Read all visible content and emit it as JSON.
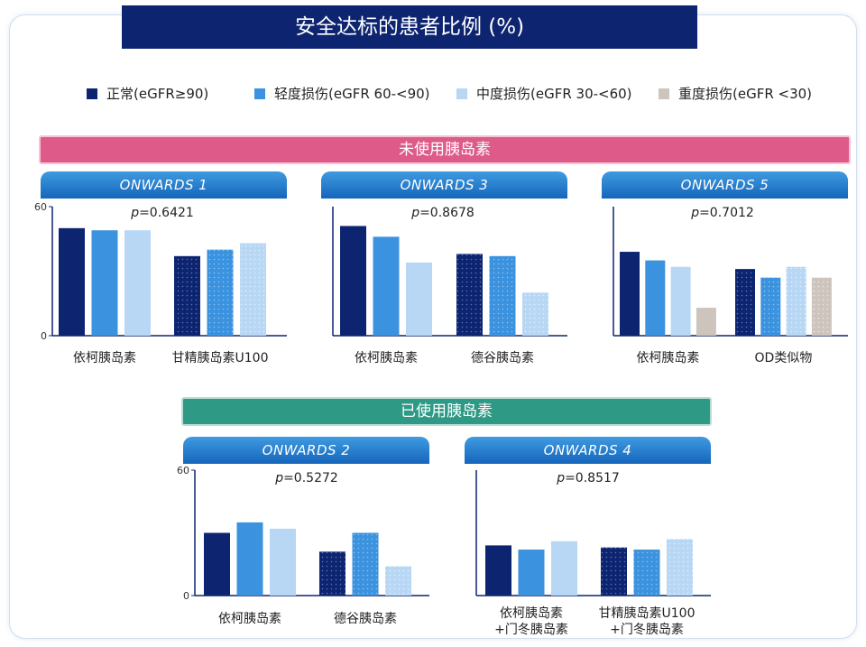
{
  "title": "安全达标的患者比例 (%)",
  "legend": [
    {
      "label": "正常(eGFR≥90)",
      "color": "#0d2470"
    },
    {
      "label": "轻度损伤(eGFR 60-<90)",
      "color": "#3b92df"
    },
    {
      "label": "中度损伤(eGFR 30-<60)",
      "color": "#b7d7f4"
    },
    {
      "label": "重度损伤(eGFR <30)",
      "color": "#cdc5bd"
    }
  ],
  "sections": {
    "insulin_naive": "未使用胰岛素",
    "insulin_experienced": "已使用胰岛素"
  },
  "chart_data": [
    {
      "type": "bar",
      "title": "ONWARDS 1",
      "p_prefix": "p",
      "p_value": "=0.6421",
      "ylim": [
        0,
        60
      ],
      "yticks": [
        "0",
        "60"
      ],
      "categories": [
        "依柯胰岛素",
        "甘精胰岛素U100"
      ],
      "series": [
        {
          "name": "正常(eGFR≥90)",
          "values": [
            50,
            37
          ]
        },
        {
          "name": "轻度损伤(eGFR 60-<90)",
          "values": [
            49,
            40
          ]
        },
        {
          "name": "中度损伤(eGFR 30-<60)",
          "values": [
            49,
            43
          ]
        }
      ]
    },
    {
      "type": "bar",
      "title": "ONWARDS 3",
      "p_prefix": "p",
      "p_value": "=0.8678",
      "ylim": [
        0,
        60
      ],
      "yticks": [],
      "categories": [
        "依柯胰岛素",
        "德谷胰岛素"
      ],
      "series": [
        {
          "name": "正常(eGFR≥90)",
          "values": [
            51,
            38
          ]
        },
        {
          "name": "轻度损伤(eGFR 60-<90)",
          "values": [
            46,
            37
          ]
        },
        {
          "name": "中度损伤(eGFR 30-<60)",
          "values": [
            34,
            20
          ]
        }
      ]
    },
    {
      "type": "bar",
      "title": "ONWARDS 5",
      "p_prefix": "p",
      "p_value": "=0.7012",
      "ylim": [
        0,
        60
      ],
      "yticks": [],
      "categories": [
        "依柯胰岛素",
        "OD类似物"
      ],
      "series": [
        {
          "name": "正常(eGFR≥90)",
          "values": [
            39,
            31
          ]
        },
        {
          "name": "轻度损伤(eGFR 60-<90)",
          "values": [
            35,
            27
          ]
        },
        {
          "name": "中度损伤(eGFR 30-<60)",
          "values": [
            32,
            32
          ]
        },
        {
          "name": "重度损伤(eGFR <30)",
          "values": [
            13,
            27
          ]
        }
      ]
    },
    {
      "type": "bar",
      "title": "ONWARDS 2",
      "p_prefix": "p",
      "p_value": "=0.5272",
      "ylim": [
        0,
        60
      ],
      "yticks": [
        "0",
        "60"
      ],
      "categories": [
        "依柯胰岛素",
        "德谷胰岛素"
      ],
      "series": [
        {
          "name": "正常(eGFR≥90)",
          "values": [
            30,
            21
          ]
        },
        {
          "name": "轻度损伤(eGFR 60-<90)",
          "values": [
            35,
            30
          ]
        },
        {
          "name": "中度损伤(eGFR 30-<60)",
          "values": [
            32,
            14
          ]
        }
      ]
    },
    {
      "type": "bar",
      "title": "ONWARDS 4",
      "p_prefix": "p",
      "p_value": "=0.8517",
      "ylim": [
        0,
        60
      ],
      "yticks": [],
      "categories": [
        "依柯胰岛素\n+门冬胰岛素",
        "甘精胰岛素U100\n+门冬胰岛素"
      ],
      "series": [
        {
          "name": "正常(eGFR≥90)",
          "values": [
            24,
            23
          ]
        },
        {
          "name": "轻度损伤(eGFR 60-<90)",
          "values": [
            22,
            22
          ]
        },
        {
          "name": "中度损伤(eGFR 30-<60)",
          "values": [
            26,
            27
          ]
        }
      ]
    }
  ]
}
